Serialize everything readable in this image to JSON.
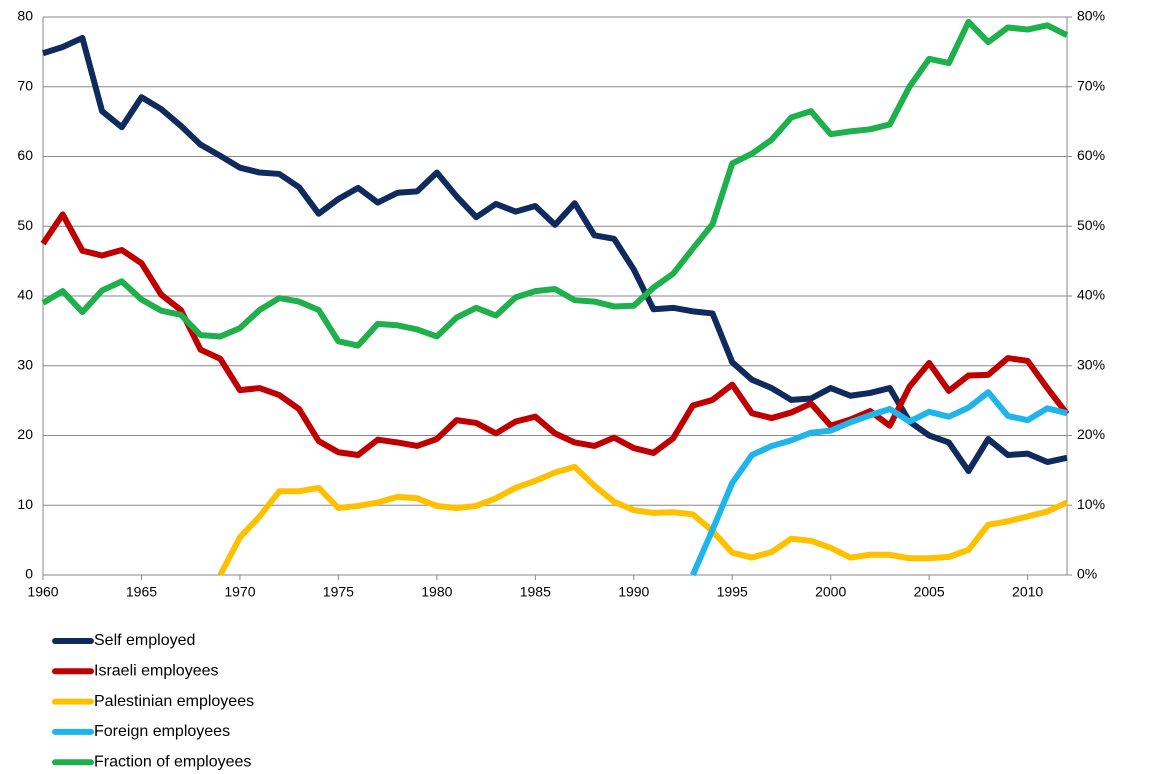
{
  "chart_data": {
    "type": "line",
    "x": [
      1960,
      1961,
      1962,
      1963,
      1964,
      1965,
      1966,
      1967,
      1968,
      1969,
      1970,
      1971,
      1972,
      1973,
      1974,
      1975,
      1976,
      1977,
      1978,
      1979,
      1980,
      1981,
      1982,
      1983,
      1984,
      1985,
      1986,
      1987,
      1988,
      1989,
      1990,
      1991,
      1992,
      1993,
      1994,
      1995,
      1996,
      1997,
      1998,
      1999,
      2000,
      2001,
      2002,
      2003,
      2004,
      2005,
      2006,
      2007,
      2008,
      2009,
      2010,
      2011,
      2012
    ],
    "xlim": [
      1960,
      2012
    ],
    "xticks": [
      1960,
      1965,
      1970,
      1975,
      1980,
      1985,
      1990,
      1995,
      2000,
      2005,
      2010
    ],
    "ylim": [
      0,
      80
    ],
    "yticks": [
      0,
      10,
      20,
      30,
      40,
      50,
      60,
      70,
      80
    ],
    "y2lim": [
      0,
      80
    ],
    "y2ticks": [
      {
        "value": 0,
        "label": "0%"
      },
      {
        "value": 10,
        "label": "10%"
      },
      {
        "value": 20,
        "label": "20%"
      },
      {
        "value": 30,
        "label": "30%"
      },
      {
        "value": 40,
        "label": "40%"
      },
      {
        "value": 50,
        "label": "50%"
      },
      {
        "value": 60,
        "label": "60%"
      },
      {
        "value": 70,
        "label": "70%"
      },
      {
        "value": 80,
        "label": "80%"
      }
    ],
    "y2color": "#1db04b",
    "grid": true,
    "series": [
      {
        "name": "Self employed",
        "color": "#0f2a5c",
        "values": [
          74.8,
          75.7,
          77,
          66.5,
          64.2,
          68.5,
          66.8,
          64.4,
          61.7,
          60.1,
          58.4,
          57.7,
          57.5,
          55.6,
          51.8,
          53.9,
          55.5,
          53.4,
          54.8,
          55,
          57.7,
          54.3,
          51.3,
          53.2,
          52.1,
          52.9,
          50.2,
          53.3,
          48.7,
          48.2,
          43.8,
          38.1,
          38.3,
          37.8,
          37.5,
          30.5,
          28,
          26.8,
          25.1,
          25.3,
          26.8,
          25.7,
          26.1,
          26.8,
          22,
          20,
          19,
          14.9,
          19.5,
          17.2,
          17.4,
          16.2,
          16.8
        ]
      },
      {
        "name": "Israeli employees",
        "color": "#c00000",
        "values": [
          47.5,
          51.7,
          46.5,
          45.8,
          46.6,
          44.7,
          40.2,
          38,
          32.3,
          31,
          26.5,
          26.8,
          25.8,
          23.8,
          19.2,
          17.6,
          17.2,
          19.4,
          19,
          18.5,
          19.5,
          22.2,
          21.8,
          20.3,
          22,
          22.7,
          20.3,
          19,
          18.5,
          19.7,
          18.2,
          17.5,
          19.6,
          24.3,
          25.1,
          27.3,
          23.2,
          22.5,
          23.3,
          24.6,
          21.4,
          22.3,
          23.5,
          21.4,
          27,
          30.4,
          26.4,
          28.6,
          28.7,
          31.1,
          30.7,
          26.8,
          23.1
        ]
      },
      {
        "name": "Palestinian employees",
        "color": "#ffc000",
        "values": [
          null,
          null,
          null,
          null,
          null,
          null,
          null,
          null,
          null,
          0,
          5.4,
          8.4,
          12,
          12,
          12.5,
          9.6,
          9.9,
          10.4,
          11.2,
          11,
          9.9,
          9.6,
          9.9,
          11,
          12.5,
          13.5,
          14.7,
          15.5,
          12.8,
          10.5,
          9.3,
          8.9,
          9,
          8.7,
          6.3,
          3.2,
          2.5,
          3.3,
          5.2,
          4.9,
          3.9,
          2.5,
          2.9,
          2.9,
          2.4,
          2.4,
          2.6,
          3.6,
          7.2,
          7.7,
          8.4,
          9.1,
          10.4
        ]
      },
      {
        "name": "Foreign employees",
        "color": "#1eb4ec",
        "values": [
          null,
          null,
          null,
          null,
          null,
          null,
          null,
          null,
          null,
          null,
          null,
          null,
          null,
          null,
          null,
          null,
          null,
          null,
          null,
          null,
          null,
          null,
          null,
          null,
          null,
          null,
          null,
          null,
          null,
          null,
          null,
          null,
          null,
          0,
          6.5,
          13.2,
          17.2,
          18.5,
          19.3,
          20.4,
          20.7,
          21.9,
          22.9,
          23.8,
          22,
          23.4,
          22.7,
          24,
          26.2,
          22.8,
          22.2,
          23.9,
          23.2
        ]
      },
      {
        "name": "Fraction of employees",
        "color": "#1db04b",
        "axis": "y2",
        "values": [
          39,
          40.7,
          37.7,
          40.8,
          42.1,
          39.5,
          37.9,
          37.3,
          34.4,
          34.2,
          35.4,
          38,
          39.7,
          39.2,
          38,
          33.5,
          32.9,
          36,
          35.8,
          35.2,
          34.2,
          36.9,
          38.3,
          37.2,
          39.8,
          40.7,
          41,
          39.4,
          39.2,
          38.5,
          38.6,
          41.2,
          43.2,
          46.8,
          50.3,
          59,
          60.4,
          62.4,
          65.6,
          66.5,
          63.2,
          63.6,
          63.9,
          64.6,
          70,
          74,
          73.4,
          79.3,
          76.4,
          78.5,
          78.2,
          78.8,
          77.4
        ]
      }
    ]
  }
}
